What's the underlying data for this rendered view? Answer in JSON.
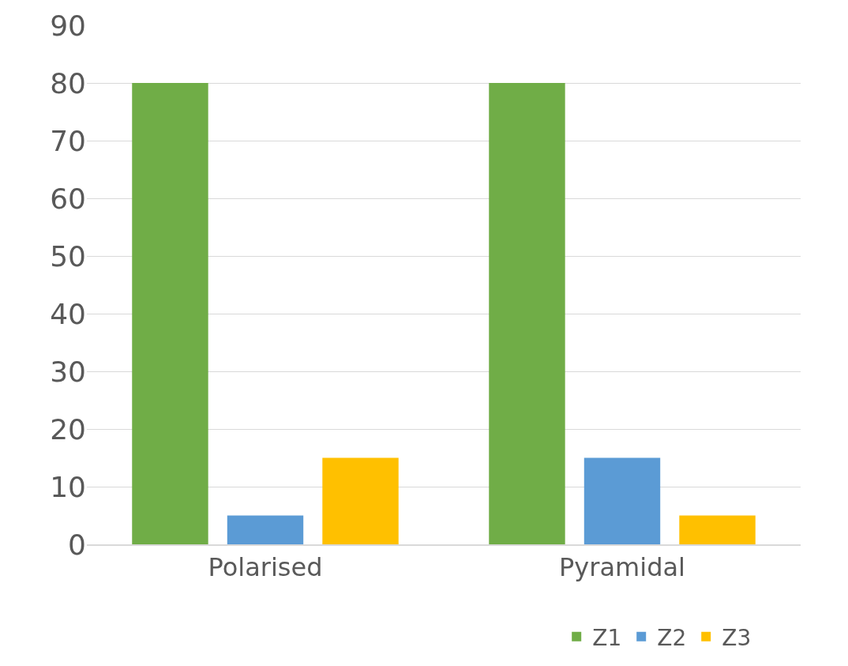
{
  "chart_data": {
    "type": "bar",
    "categories": [
      "Polarised",
      "Pyramidal"
    ],
    "series": [
      {
        "name": "Z1",
        "color": "#70ad47",
        "values": [
          80,
          80
        ]
      },
      {
        "name": "Z2",
        "color": "#5b9bd5",
        "values": [
          5,
          15
        ]
      },
      {
        "name": "Z3",
        "color": "#ffc000",
        "values": [
          15,
          5
        ]
      }
    ],
    "ylim": [
      0,
      90
    ],
    "yticks": [
      0,
      10,
      20,
      30,
      40,
      50,
      60,
      70,
      80,
      90
    ],
    "grid": "y",
    "legend": "bottom"
  }
}
